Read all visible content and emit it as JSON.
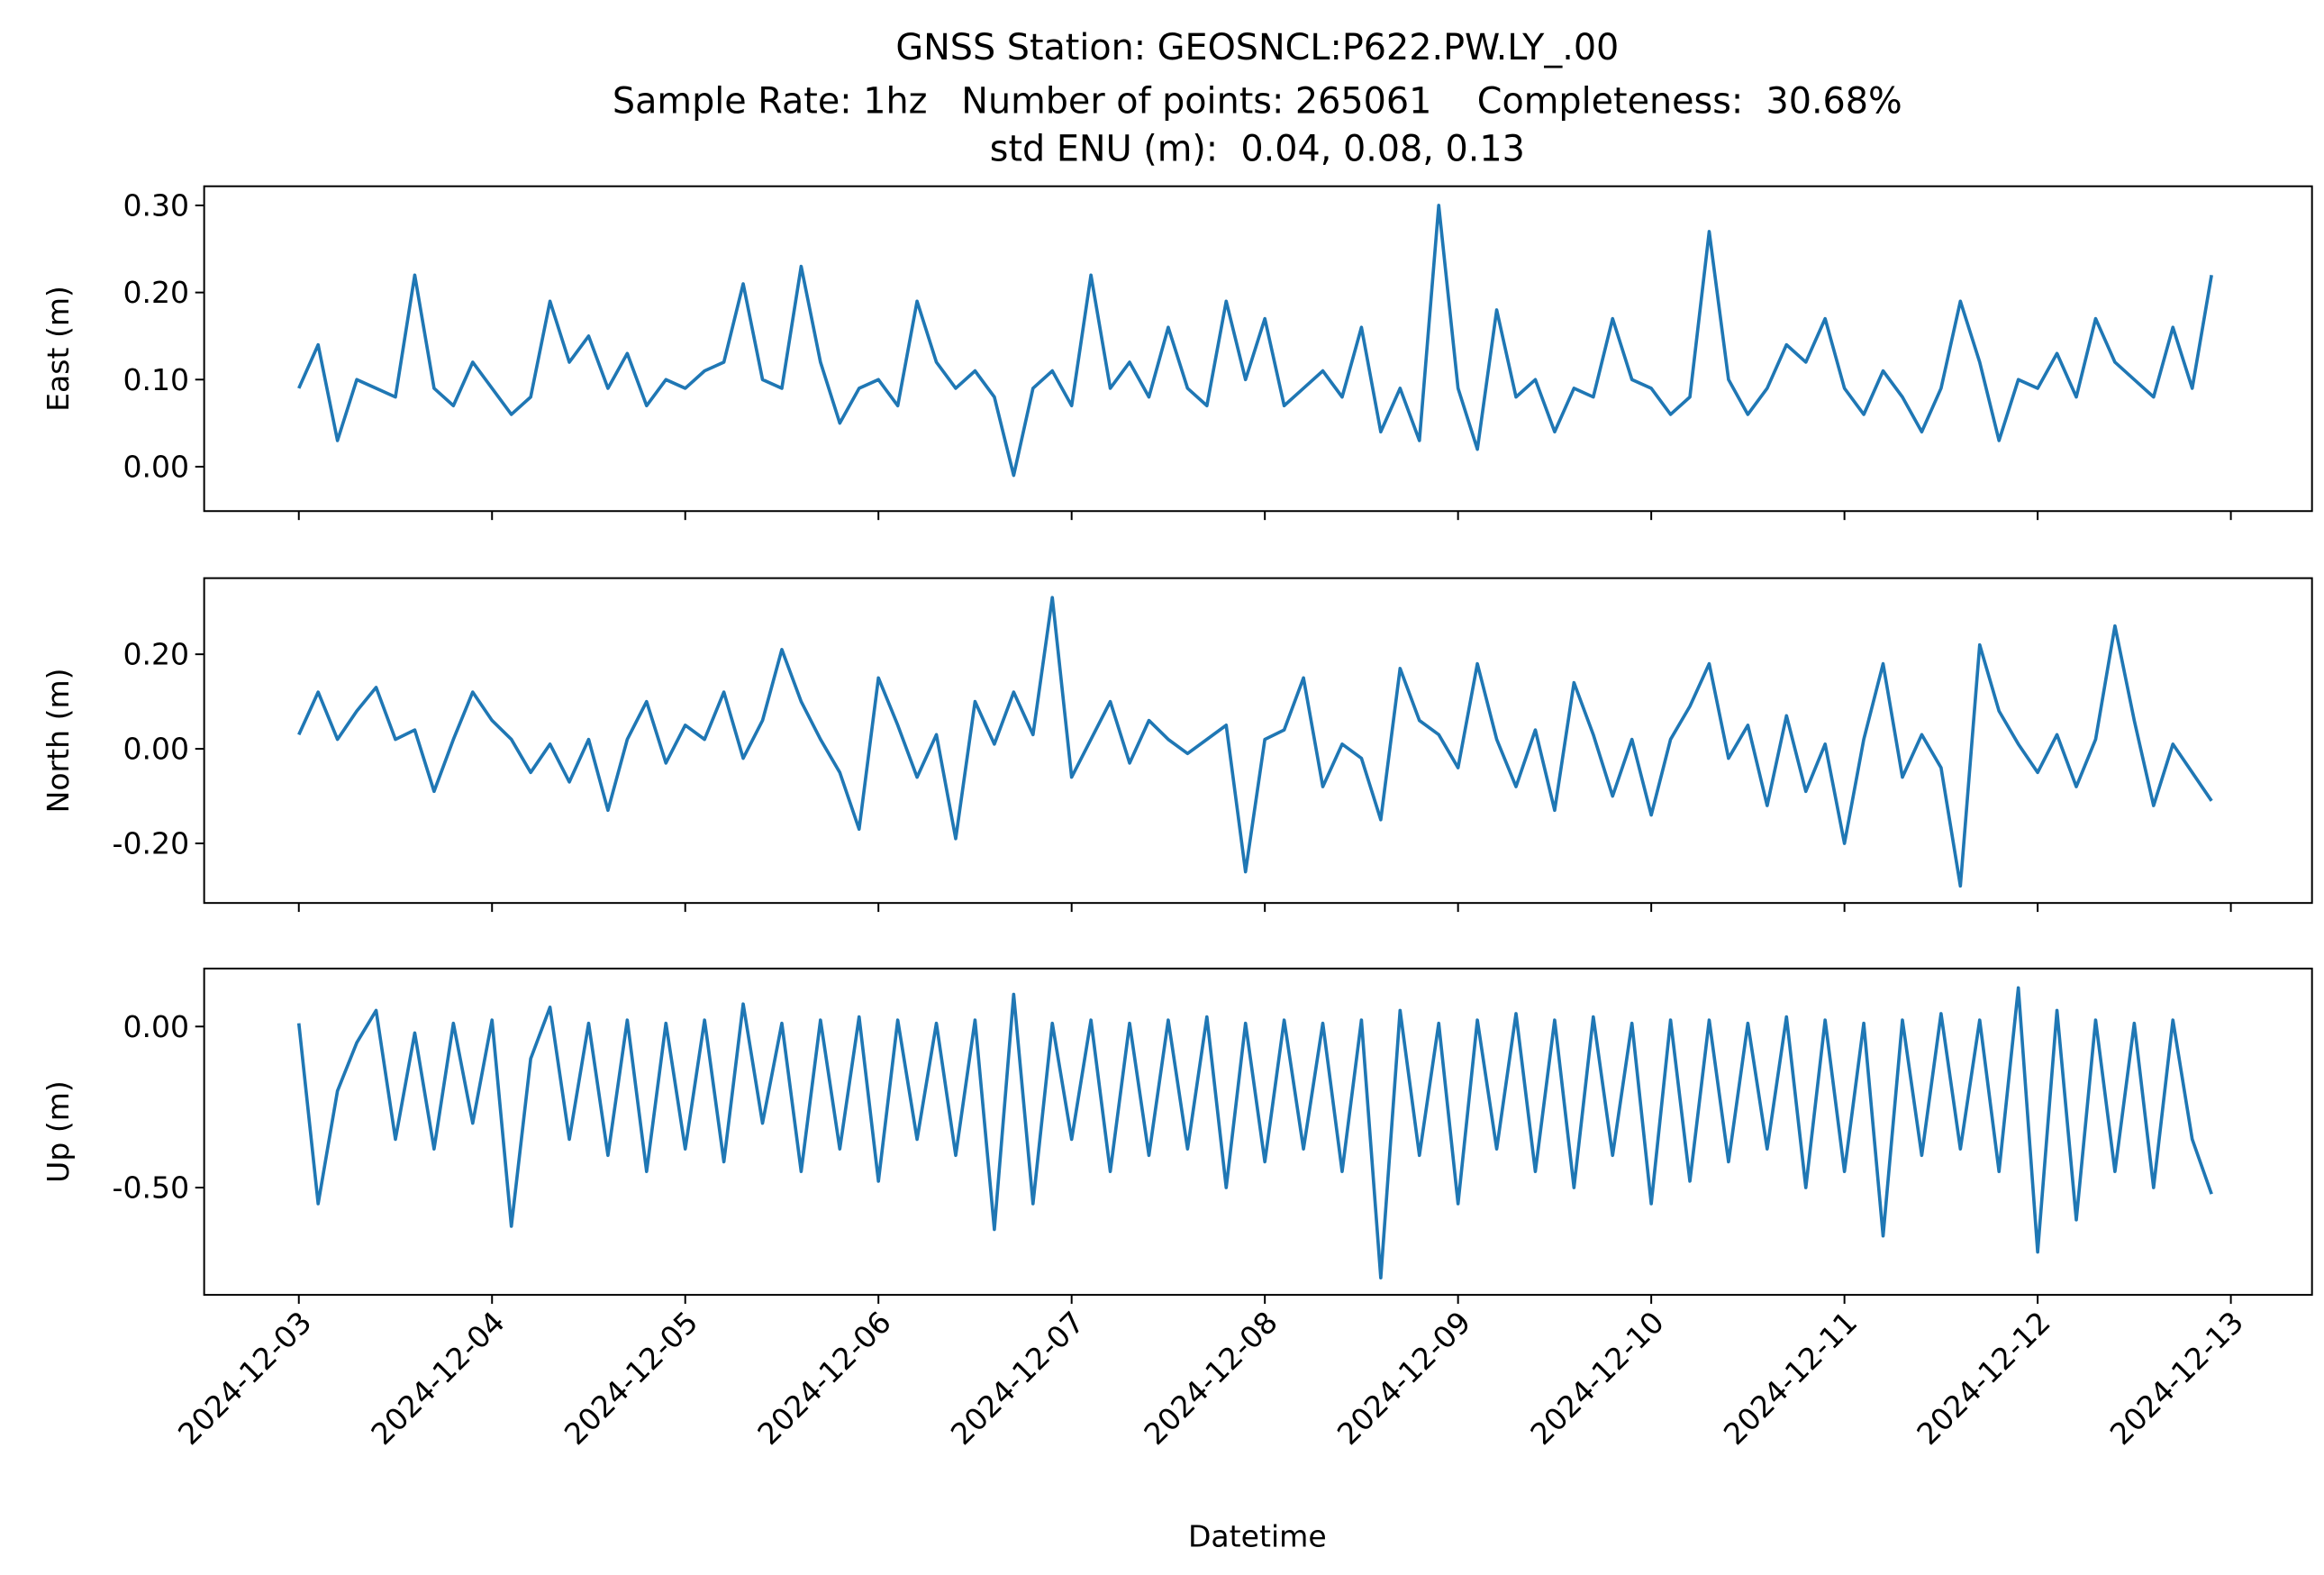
{
  "chart_data": {
    "type": "line",
    "title": "GNSS Station: GEOSNCL:P622.PW.LY_.00",
    "subtitle": [
      "Sample Rate: 1hz   Number of points: 265061    Completeness:  30.68%",
      "std ENU (m):  0.04, 0.08, 0.13"
    ],
    "xlabel": "Datetime",
    "xlim": [
      -0.49,
      10.42
    ],
    "xticks": [
      {
        "value": 0,
        "label": "2024-12-03"
      },
      {
        "value": 1,
        "label": "2024-12-04"
      },
      {
        "value": 2,
        "label": "2024-12-05"
      },
      {
        "value": 3,
        "label": "2024-12-06"
      },
      {
        "value": 4,
        "label": "2024-12-07"
      },
      {
        "value": 5,
        "label": "2024-12-08"
      },
      {
        "value": 6,
        "label": "2024-12-09"
      },
      {
        "value": 7,
        "label": "2024-12-10"
      },
      {
        "value": 8,
        "label": "2024-12-11"
      },
      {
        "value": 9,
        "label": "2024-12-12"
      },
      {
        "value": 10,
        "label": "2024-12-13"
      }
    ],
    "x": [
      0,
      0.1,
      0.2,
      0.3,
      0.4,
      0.5,
      0.6,
      0.7,
      0.8,
      0.9,
      1,
      1.1,
      1.2,
      1.3,
      1.4,
      1.5,
      1.6,
      1.7,
      1.8,
      1.9,
      2,
      2.1,
      2.2,
      2.3,
      2.4,
      2.5,
      2.6,
      2.7,
      2.8,
      2.9,
      3,
      3.1,
      3.2,
      3.3,
      3.4,
      3.5,
      3.6,
      3.7,
      3.8,
      3.9,
      4,
      4.1,
      4.2,
      4.3,
      4.4,
      4.5,
      4.6,
      4.7,
      4.8,
      4.9,
      5,
      5.1,
      5.2,
      5.3,
      5.4,
      5.5,
      5.6,
      5.7,
      5.8,
      5.9,
      6,
      6.1,
      6.2,
      6.3,
      6.4,
      6.5,
      6.6,
      6.7,
      6.8,
      6.9,
      7,
      7.1,
      7.2,
      7.3,
      7.4,
      7.5,
      7.6,
      7.7,
      7.8,
      7.9,
      8,
      8.1,
      8.2,
      8.3,
      8.4,
      8.5,
      8.6,
      8.7,
      8.8,
      8.9,
      9,
      9.1,
      9.2,
      9.3,
      9.4,
      9.5,
      9.6,
      9.7,
      9.8,
      9.9
    ],
    "panels": [
      {
        "ylabel": "East (m)",
        "ylim": [
          -0.051,
          0.322
        ],
        "yticks": [
          {
            "value": 0,
            "label": "0.00"
          },
          {
            "value": 0.1,
            "label": "0.10"
          },
          {
            "value": 0.2,
            "label": "0.20"
          },
          {
            "value": 0.3,
            "label": "0.30"
          }
        ],
        "series": [
          {
            "color": "#1f77b4",
            "values": [
              0.09,
              0.14,
              0.03,
              0.1,
              0.09,
              0.08,
              0.22,
              0.09,
              0.07,
              0.12,
              0.09,
              0.06,
              0.08,
              0.19,
              0.12,
              0.15,
              0.09,
              0.13,
              0.07,
              0.1,
              0.09,
              0.11,
              0.12,
              0.21,
              0.1,
              0.09,
              0.23,
              0.12,
              0.05,
              0.09,
              0.1,
              0.07,
              0.19,
              0.12,
              0.09,
              0.11,
              0.08,
              -0.01,
              0.09,
              0.11,
              0.07,
              0.22,
              0.09,
              0.12,
              0.08,
              0.16,
              0.09,
              0.07,
              0.19,
              0.1,
              0.17,
              0.07,
              0.09,
              0.11,
              0.08,
              0.16,
              0.04,
              0.09,
              0.03,
              0.3,
              0.09,
              0.02,
              0.18,
              0.08,
              0.1,
              0.04,
              0.09,
              0.08,
              0.17,
              0.1,
              0.09,
              0.06,
              0.08,
              0.27,
              0.1,
              0.06,
              0.09,
              0.14,
              0.12,
              0.17,
              0.09,
              0.06,
              0.11,
              0.08,
              0.04,
              0.09,
              0.19,
              0.12,
              0.03,
              0.1,
              0.09,
              0.13,
              0.08,
              0.17,
              0.12,
              0.1,
              0.08,
              0.16,
              0.09,
              0.22
            ]
          }
        ]
      },
      {
        "ylabel": "North (m)",
        "ylim": [
          -0.326,
          0.361
        ],
        "yticks": [
          {
            "value": -0.2,
            "label": "-0.20"
          },
          {
            "value": 0,
            "label": "0.00"
          },
          {
            "value": 0.2,
            "label": "0.20"
          }
        ],
        "series": [
          {
            "color": "#1f77b4",
            "values": [
              0.03,
              0.12,
              0.02,
              0.08,
              0.13,
              0.02,
              0.04,
              -0.09,
              0.02,
              0.12,
              0.06,
              0.02,
              -0.05,
              0.01,
              -0.07,
              0.02,
              -0.13,
              0.02,
              0.1,
              -0.03,
              0.05,
              0.02,
              0.12,
              -0.02,
              0.06,
              0.21,
              0.1,
              0.02,
              -0.05,
              -0.17,
              0.15,
              0.05,
              -0.06,
              0.03,
              -0.19,
              0.1,
              0.01,
              0.12,
              0.03,
              0.32,
              -0.06,
              0.02,
              0.1,
              -0.03,
              0.06,
              0.02,
              -0.01,
              0.02,
              0.05,
              -0.26,
              0.02,
              0.04,
              0.15,
              -0.08,
              0.01,
              -0.02,
              -0.15,
              0.17,
              0.06,
              0.03,
              -0.04,
              0.18,
              0.02,
              -0.08,
              0.04,
              -0.13,
              0.14,
              0.03,
              -0.1,
              0.02,
              -0.14,
              0.02,
              0.09,
              0.18,
              -0.02,
              0.05,
              -0.12,
              0.07,
              -0.09,
              0.01,
              -0.2,
              0.02,
              0.18,
              -0.06,
              0.03,
              -0.04,
              -0.29,
              0.22,
              0.08,
              0.01,
              -0.05,
              0.03,
              -0.08,
              0.02,
              0.26,
              0.06,
              -0.12,
              0.01,
              -0.05,
              -0.11
            ]
          }
        ]
      },
      {
        "ylabel": "Up (m)",
        "ylim": [
          -0.833,
          0.18
        ],
        "yticks": [
          {
            "value": -0.5,
            "label": "-0.50"
          },
          {
            "value": 0,
            "label": "0.00"
          }
        ],
        "series": [
          {
            "color": "#1f77b4",
            "values": [
              0.01,
              -0.55,
              -0.2,
              -0.05,
              0.05,
              -0.35,
              -0.02,
              -0.38,
              0.01,
              -0.3,
              0.02,
              -0.62,
              -0.1,
              0.06,
              -0.35,
              0.01,
              -0.4,
              0.02,
              -0.45,
              0.01,
              -0.38,
              0.02,
              -0.42,
              0.07,
              -0.3,
              0.01,
              -0.45,
              0.02,
              -0.38,
              0.03,
              -0.48,
              0.02,
              -0.35,
              0.01,
              -0.4,
              0.02,
              -0.63,
              0.1,
              -0.55,
              0.01,
              -0.35,
              0.02,
              -0.45,
              0.01,
              -0.4,
              0.02,
              -0.38,
              0.03,
              -0.5,
              0.01,
              -0.42,
              0.02,
              -0.38,
              0.01,
              -0.45,
              0.02,
              -0.78,
              0.05,
              -0.4,
              0.01,
              -0.55,
              0.02,
              -0.38,
              0.04,
              -0.45,
              0.02,
              -0.5,
              0.03,
              -0.4,
              0.01,
              -0.55,
              0.02,
              -0.48,
              0.02,
              -0.42,
              0.01,
              -0.38,
              0.03,
              -0.5,
              0.02,
              -0.45,
              0.01,
              -0.65,
              0.02,
              -0.4,
              0.04,
              -0.38,
              0.02,
              -0.45,
              0.12,
              -0.7,
              0.05,
              -0.6,
              0.02,
              -0.45,
              0.01,
              -0.5,
              0.02,
              -0.35,
              -0.52
            ]
          }
        ]
      }
    ]
  }
}
